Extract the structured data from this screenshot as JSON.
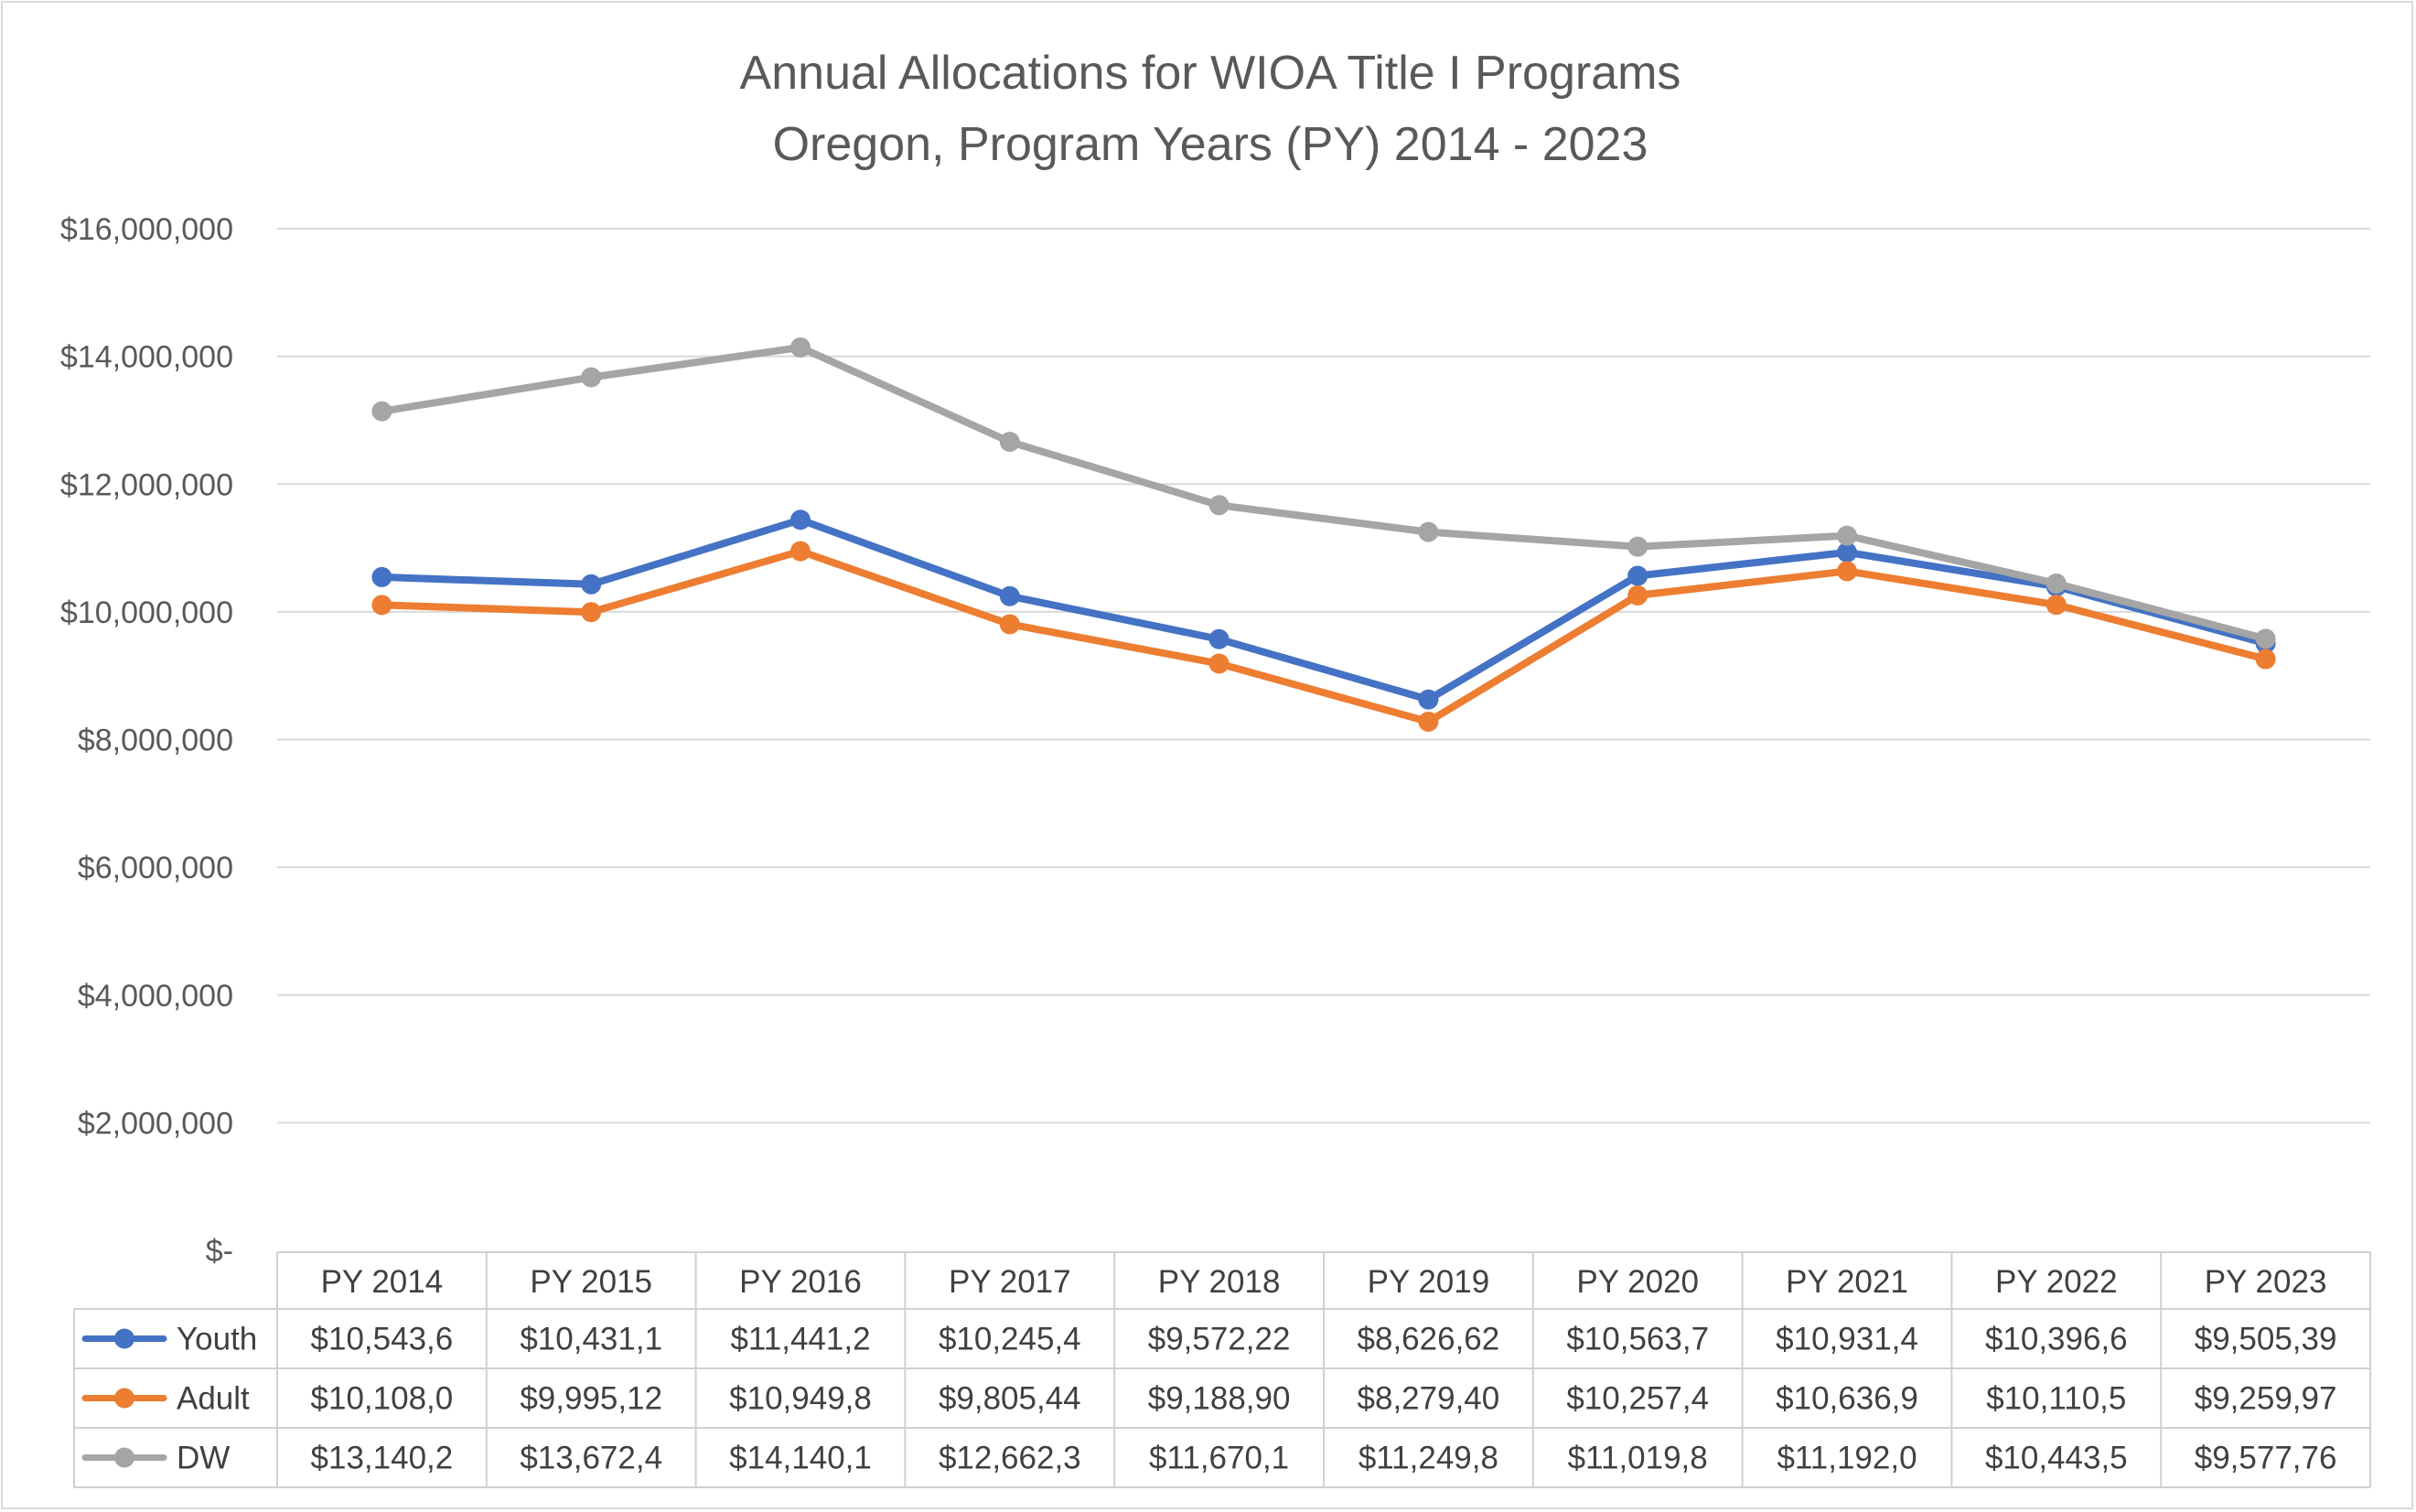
{
  "chart_data": {
    "type": "line",
    "title": "Annual Allocations for WIOA Title I Programs",
    "subtitle": "Oregon, Program Years (PY) 2014 - 2023",
    "categories": [
      "PY 2014",
      "PY 2015",
      "PY 2016",
      "PY 2017",
      "PY 2018",
      "PY 2019",
      "PY 2020",
      "PY 2021",
      "PY 2022",
      "PY 2023"
    ],
    "ylim": [
      0,
      16000000
    ],
    "y_ticks": [
      0,
      2000000,
      4000000,
      6000000,
      8000000,
      10000000,
      12000000,
      14000000,
      16000000
    ],
    "y_tick_labels": [
      "$-",
      "$2,000,000",
      "$4,000,000",
      "$6,000,000",
      "$8,000,000",
      "$10,000,000",
      "$12,000,000",
      "$14,000,000",
      "$16,000,000"
    ],
    "grid": true,
    "legend": "data-table",
    "series": [
      {
        "name": "Youth",
        "color": "#4472c4",
        "values": [
          10543600,
          10431100,
          11441200,
          10245400,
          9572220,
          8626620,
          10563700,
          10931400,
          10396600,
          9505390
        ],
        "labels": [
          "$10,543,6",
          "$10,431,1",
          "$11,441,2",
          "$10,245,4",
          "$9,572,22",
          "$8,626,62",
          "$10,563,7",
          "$10,931,4",
          "$10,396,6",
          "$9,505,39"
        ]
      },
      {
        "name": "Adult",
        "color": "#ed7d31",
        "values": [
          10108000,
          9995120,
          10949800,
          9805440,
          9188900,
          8279400,
          10257400,
          10636900,
          10110500,
          9259970
        ],
        "labels": [
          "$10,108,0",
          "$9,995,12",
          "$10,949,8",
          "$9,805,44",
          "$9,188,90",
          "$8,279,40",
          "$10,257,4",
          "$10,636,9",
          "$10,110,5",
          "$9,259,97"
        ]
      },
      {
        "name": "DW",
        "color": "#a5a5a5",
        "values": [
          13140200,
          13672400,
          14140100,
          12662300,
          11670100,
          11249800,
          11019800,
          11192000,
          10443500,
          9577760
        ],
        "labels": [
          "$13,140,2",
          "$13,672,4",
          "$14,140,1",
          "$12,662,3",
          "$11,670,1",
          "$11,249,8",
          "$11,019,8",
          "$11,192,0",
          "$10,443,5",
          "$9,577,76"
        ]
      }
    ]
  }
}
